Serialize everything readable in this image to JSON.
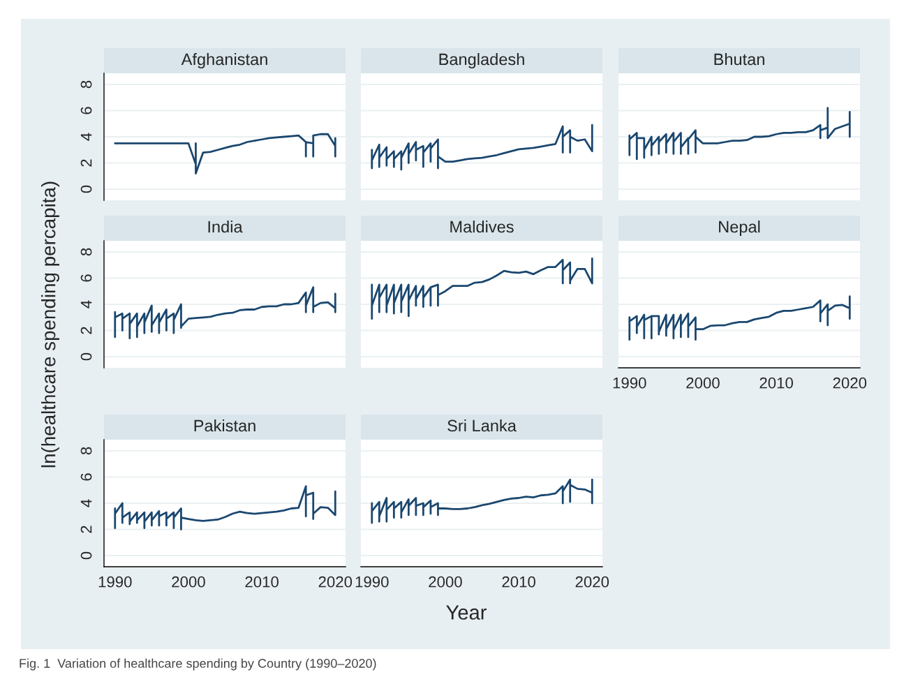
{
  "chart_data": [
    {
      "type": "line",
      "title": "Afghanistan",
      "xlabel": "Year",
      "ylabel": "ln(healthcare spending percapita)",
      "annotations": [
        "Fig. 1  Variation of healthcare spending by Country (1990–2020)"
      ],
      "color": "#1a476f",
      "xlim": [
        1988.5,
        2021.4
      ],
      "ylim": [
        -0.85,
        8.85
      ],
      "xticks": [
        1990,
        2000,
        2010,
        2020
      ],
      "yticks": [
        0,
        2,
        4,
        6,
        8
      ],
      "grid": "y",
      "tick_labels": "y",
      "x": [
        1990,
        2000,
        2001,
        2001,
        2001,
        2002,
        2003,
        2004,
        2005,
        2006,
        2007,
        2008,
        2009,
        2010,
        2011,
        2012,
        2013,
        2014,
        2015,
        2016,
        2016,
        2016,
        2017,
        2017,
        2017,
        2018,
        2019,
        2020,
        2020,
        2020
      ],
      "values": [
        3.5,
        3.5,
        1.9,
        3.5,
        1.2,
        2.8,
        2.85,
        3.0,
        3.15,
        3.3,
        3.4,
        3.6,
        3.7,
        3.8,
        3.9,
        3.95,
        4.0,
        4.05,
        4.1,
        3.6,
        2.5,
        3.6,
        3.5,
        2.5,
        4.1,
        4.2,
        4.2,
        3.3,
        2.5,
        3.9
      ]
    },
    {
      "type": "line",
      "title": "Bangladesh",
      "color": "#1a476f",
      "xlim": [
        1988.5,
        2021.4
      ],
      "ylim": [
        -0.85,
        8.85
      ],
      "xticks": [
        1990,
        2000,
        2010,
        2020
      ],
      "yticks": [
        0,
        2,
        4,
        6,
        8
      ],
      "grid": "y",
      "tick_labels": false,
      "x": [
        1990,
        1990,
        1990,
        1991,
        1991,
        1991,
        1992,
        1992,
        1992,
        1993,
        1993,
        1993,
        1994,
        1994,
        1994,
        1995,
        1995,
        1995,
        1996,
        1996,
        1996,
        1997,
        1997,
        1997,
        1998,
        1998,
        1998,
        1999,
        1999,
        1999,
        2000,
        2001,
        2002,
        2003,
        2004,
        2005,
        2006,
        2007,
        2008,
        2009,
        2010,
        2011,
        2012,
        2013,
        2014,
        2015,
        2016,
        2016,
        2016,
        2017,
        2017,
        2017,
        2018,
        2019,
        2020,
        2020
      ],
      "values": [
        3.0,
        1.6,
        2.2,
        3.4,
        1.7,
        2.4,
        3.2,
        1.8,
        2.3,
        2.9,
        1.7,
        2.3,
        2.9,
        1.5,
        2.4,
        3.5,
        2.0,
        2.7,
        3.6,
        2.2,
        3.0,
        3.3,
        1.7,
        2.8,
        3.5,
        2.1,
        3.1,
        3.8,
        1.6,
        2.5,
        2.1,
        2.1,
        2.2,
        2.3,
        2.35,
        2.4,
        2.5,
        2.6,
        2.75,
        2.9,
        3.05,
        3.1,
        3.15,
        3.25,
        3.35,
        3.45,
        4.8,
        2.8,
        4.0,
        4.5,
        2.8,
        4.0,
        3.7,
        3.8,
        2.9,
        4.9
      ]
    },
    {
      "type": "line",
      "title": "Bhutan",
      "color": "#1a476f",
      "xlim": [
        1988.5,
        2021.4
      ],
      "ylim": [
        -0.85,
        8.85
      ],
      "xticks": [
        1990,
        2000,
        2010,
        2020
      ],
      "yticks": [
        0,
        2,
        4,
        6,
        8
      ],
      "grid": "y",
      "tick_labels": false,
      "x": [
        1990,
        1990,
        1990,
        1991,
        1991,
        1991,
        1992,
        1992,
        1992,
        1993,
        1993,
        1993,
        1994,
        1994,
        1994,
        1995,
        1995,
        1995,
        1996,
        1996,
        1996,
        1997,
        1997,
        1997,
        1998,
        1998,
        1998,
        1999,
        1999,
        1999,
        2000,
        2001,
        2002,
        2003,
        2004,
        2005,
        2006,
        2007,
        2008,
        2009,
        2010,
        2011,
        2012,
        2013,
        2014,
        2015,
        2016,
        2016,
        2016,
        2017,
        2017,
        2017,
        2018,
        2019,
        2020,
        2020,
        2020
      ],
      "values": [
        4.1,
        2.6,
        3.8,
        4.3,
        2.3,
        3.9,
        3.9,
        2.4,
        3.0,
        4.0,
        2.6,
        3.3,
        4.0,
        2.7,
        3.6,
        4.2,
        2.8,
        3.5,
        4.3,
        2.7,
        3.6,
        4.3,
        2.7,
        3.2,
        3.9,
        2.7,
        3.8,
        4.5,
        2.8,
        4.0,
        3.5,
        3.5,
        3.5,
        3.6,
        3.7,
        3.7,
        3.75,
        4.0,
        4.0,
        4.05,
        4.2,
        4.3,
        4.3,
        4.35,
        4.35,
        4.5,
        4.9,
        3.9,
        4.5,
        4.7,
        6.2,
        3.9,
        4.6,
        4.8,
        5.0,
        5.9,
        4.0
      ]
    },
    {
      "type": "line",
      "title": "India",
      "color": "#1a476f",
      "xlim": [
        1988.5,
        2021.4
      ],
      "ylim": [
        -0.85,
        8.85
      ],
      "xticks": [
        1990,
        2000,
        2010,
        2020
      ],
      "yticks": [
        0,
        2,
        4,
        6,
        8
      ],
      "grid": "y",
      "tick_labels": "y",
      "x": [
        1990,
        1990,
        1990,
        1991,
        1991,
        1991,
        1992,
        1992,
        1992,
        1993,
        1993,
        1993,
        1994,
        1994,
        1994,
        1995,
        1995,
        1995,
        1996,
        1996,
        1996,
        1997,
        1997,
        1997,
        1998,
        1998,
        1998,
        1999,
        1999,
        1999,
        2000,
        2001,
        2002,
        2003,
        2004,
        2005,
        2006,
        2007,
        2008,
        2009,
        2010,
        2011,
        2012,
        2013,
        2014,
        2015,
        2016,
        2016,
        2016,
        2017,
        2017,
        2017,
        2018,
        2019,
        2020,
        2020,
        2020
      ],
      "values": [
        3.4,
        1.5,
        3.0,
        3.3,
        2.0,
        2.9,
        3.3,
        1.4,
        2.5,
        3.3,
        1.5,
        2.3,
        3.3,
        1.8,
        2.6,
        3.9,
        1.9,
        2.4,
        3.3,
        1.8,
        2.6,
        3.6,
        2.0,
        2.9,
        3.3,
        1.8,
        2.8,
        4.0,
        2.2,
        2.3,
        2.9,
        2.95,
        3.0,
        3.05,
        3.2,
        3.3,
        3.35,
        3.55,
        3.6,
        3.6,
        3.8,
        3.85,
        3.85,
        4.0,
        4.0,
        4.1,
        4.9,
        3.4,
        3.9,
        5.3,
        3.4,
        3.8,
        4.1,
        4.15,
        3.7,
        4.8,
        3.4
      ]
    },
    {
      "type": "line",
      "title": "Maldives",
      "color": "#1a476f",
      "xlim": [
        1988.5,
        2021.4
      ],
      "ylim": [
        -0.85,
        8.85
      ],
      "xticks": [
        1990,
        2000,
        2010,
        2020
      ],
      "yticks": [
        0,
        2,
        4,
        6,
        8
      ],
      "grid": "y",
      "tick_labels": false,
      "x": [
        1990,
        1990,
        1990,
        1991,
        1991,
        1991,
        1992,
        1992,
        1992,
        1993,
        1993,
        1993,
        1994,
        1994,
        1994,
        1995,
        1995,
        1995,
        1996,
        1996,
        1996,
        1997,
        1997,
        1997,
        1998,
        1998,
        1998,
        1999,
        1999,
        1999,
        2000,
        2001,
        2002,
        2003,
        2004,
        2005,
        2006,
        2007,
        2008,
        2009,
        2010,
        2011,
        2012,
        2013,
        2014,
        2015,
        2016,
        2016,
        2016,
        2017,
        2017,
        2017,
        2018,
        2019,
        2020,
        2020
      ],
      "values": [
        5.5,
        2.9,
        3.9,
        5.5,
        3.4,
        4.5,
        5.5,
        3.4,
        3.9,
        5.5,
        3.3,
        4.1,
        5.5,
        3.4,
        4.2,
        5.5,
        3.1,
        4.3,
        5.4,
        3.9,
        4.4,
        5.4,
        3.8,
        4.5,
        5.3,
        3.9,
        5.3,
        5.5,
        3.9,
        4.7,
        5.0,
        5.4,
        5.4,
        5.4,
        5.65,
        5.7,
        5.9,
        6.2,
        6.55,
        6.45,
        6.4,
        6.5,
        6.3,
        6.6,
        6.85,
        6.85,
        7.4,
        5.6,
        6.6,
        7.2,
        5.6,
        5.8,
        6.7,
        6.7,
        5.6,
        7.5
      ]
    },
    {
      "type": "line",
      "title": "Nepal",
      "color": "#1a476f",
      "xlim": [
        1988.5,
        2021.4
      ],
      "ylim": [
        -0.85,
        8.85
      ],
      "xticks": [
        1990,
        2000,
        2010,
        2020
      ],
      "yticks": [
        0,
        2,
        4,
        6,
        8
      ],
      "grid": "y",
      "tick_labels": "x",
      "x": [
        1990,
        1990,
        1990,
        1991,
        1991,
        1991,
        1992,
        1992,
        1992,
        1993,
        1993,
        1993,
        1994,
        1994,
        1994,
        1995,
        1995,
        1995,
        1996,
        1996,
        1996,
        1997,
        1997,
        1997,
        1998,
        1998,
        1998,
        1999,
        1999,
        1999,
        2000,
        2001,
        2002,
        2003,
        2004,
        2005,
        2006,
        2007,
        2008,
        2009,
        2010,
        2011,
        2012,
        2013,
        2014,
        2015,
        2016,
        2016,
        2016,
        2017,
        2017,
        2017,
        2018,
        2019,
        2020,
        2020,
        2020
      ],
      "values": [
        3.0,
        1.3,
        2.7,
        3.1,
        1.8,
        2.3,
        3.2,
        1.4,
        2.8,
        3.1,
        1.4,
        3.1,
        3.1,
        1.7,
        1.9,
        3.2,
        1.6,
        2.1,
        3.2,
        1.4,
        2.0,
        3.2,
        1.5,
        2.4,
        3.3,
        1.5,
        2.3,
        3.0,
        1.3,
        2.1,
        2.1,
        2.35,
        2.4,
        2.4,
        2.55,
        2.65,
        2.65,
        2.85,
        2.95,
        3.05,
        3.35,
        3.5,
        3.5,
        3.6,
        3.7,
        3.8,
        4.3,
        2.7,
        3.3,
        4.0,
        2.4,
        3.5,
        3.9,
        3.95,
        3.7,
        4.6,
        2.9
      ]
    },
    {
      "type": "line",
      "title": "Pakistan",
      "color": "#1a476f",
      "xlim": [
        1988.5,
        2021.4
      ],
      "ylim": [
        -0.85,
        8.85
      ],
      "xticks": [
        1990,
        2000,
        2010,
        2020
      ],
      "yticks": [
        0,
        2,
        4,
        6,
        8
      ],
      "grid": "y",
      "x": [
        1990,
        1990,
        1990,
        1991,
        1991,
        1991,
        1992,
        1992,
        1992,
        1993,
        1993,
        1993,
        1994,
        1994,
        1994,
        1995,
        1995,
        1995,
        1996,
        1996,
        1996,
        1997,
        1997,
        1997,
        1998,
        1998,
        1998,
        1999,
        1999,
        1999,
        2000,
        2001,
        2002,
        2003,
        2004,
        2005,
        2006,
        2007,
        2008,
        2009,
        2010,
        2011,
        2012,
        2013,
        2014,
        2015,
        2016,
        2016,
        2016,
        2017,
        2017,
        2017,
        2018,
        2019,
        2020,
        2020
      ],
      "values": [
        3.6,
        2.1,
        3.2,
        4.0,
        2.5,
        2.9,
        3.3,
        2.4,
        2.6,
        3.3,
        2.5,
        2.7,
        3.3,
        2.1,
        2.6,
        3.3,
        2.3,
        2.7,
        3.4,
        2.3,
        3.0,
        3.3,
        2.3,
        2.8,
        3.3,
        2.1,
        2.9,
        3.6,
        2.0,
        2.9,
        2.8,
        2.7,
        2.65,
        2.7,
        2.75,
        2.95,
        3.2,
        3.35,
        3.25,
        3.2,
        3.25,
        3.3,
        3.35,
        3.45,
        3.6,
        3.65,
        5.3,
        3.0,
        4.6,
        4.8,
        2.8,
        3.2,
        3.7,
        3.65,
        3.1,
        4.9
      ]
    },
    {
      "type": "line",
      "title": "Sri Lanka",
      "color": "#1a476f",
      "xlim": [
        1988.5,
        2021.4
      ],
      "ylim": [
        -0.85,
        8.85
      ],
      "xticks": [
        1990,
        2000,
        2010,
        2020
      ],
      "yticks": [
        0,
        2,
        4,
        6,
        8
      ],
      "grid": "y",
      "tick_labels": "x",
      "x": [
        1990,
        1990,
        1990,
        1991,
        1991,
        1991,
        1992,
        1992,
        1992,
        1993,
        1993,
        1993,
        1994,
        1994,
        1994,
        1995,
        1995,
        1995,
        1996,
        1996,
        1996,
        1997,
        1997,
        1997,
        1998,
        1998,
        1998,
        1999,
        1999,
        1999,
        2000,
        2001,
        2002,
        2003,
        2004,
        2005,
        2006,
        2007,
        2008,
        2009,
        2010,
        2011,
        2012,
        2013,
        2014,
        2015,
        2016,
        2016,
        2016,
        2017,
        2017,
        2017,
        2018,
        2019,
        2020,
        2020,
        2020
      ],
      "values": [
        4.0,
        2.5,
        3.4,
        4.1,
        2.6,
        3.0,
        4.4,
        2.6,
        3.5,
        4.1,
        2.9,
        3.6,
        4.1,
        2.9,
        3.3,
        4.3,
        3.1,
        3.8,
        4.4,
        3.1,
        3.8,
        4.0,
        3.1,
        3.7,
        4.2,
        3.2,
        3.7,
        4.0,
        3.1,
        3.6,
        3.6,
        3.55,
        3.55,
        3.6,
        3.7,
        3.85,
        3.95,
        4.1,
        4.25,
        4.35,
        4.4,
        4.5,
        4.45,
        4.6,
        4.65,
        4.75,
        5.3,
        4.0,
        4.9,
        5.8,
        4.1,
        5.4,
        5.1,
        5.05,
        4.8,
        4.0,
        5.8
      ]
    }
  ]
}
